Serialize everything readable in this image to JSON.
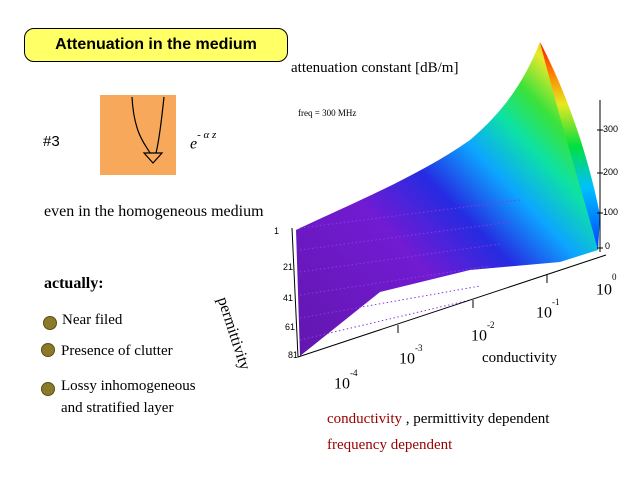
{
  "title": "Attenuation in the medium",
  "slide_number": "#3",
  "formula": {
    "base": "e",
    "exponent": "- α z"
  },
  "homogeneous_note": "even in the homogeneous medium",
  "actually_label": "actually:",
  "bullets": [
    {
      "text": "Near filed"
    },
    {
      "text": "Presence of clutter"
    },
    {
      "text": "Lossy inhomogeneous"
    },
    {
      "text": "and stratified layer"
    }
  ],
  "chart": {
    "zlabel": "attenuation constant [dB/m]",
    "freq_note": "freq = 300 MHz",
    "z_ticks": [
      "300",
      "200",
      "100",
      "0"
    ],
    "perm_label": "permittivity",
    "perm_ticks": [
      "1",
      "21",
      "41",
      "61",
      "81"
    ],
    "cond_label": "conductivity",
    "cond_tick_base": "10",
    "cond_ticks": [
      {
        "base": "10",
        "exp": "-4"
      },
      {
        "base": "10",
        "exp": "-3"
      },
      {
        "base": "10",
        "exp": "-2"
      },
      {
        "base": "10",
        "exp": "-1"
      },
      {
        "base": "10",
        "exp": "0"
      }
    ]
  },
  "footer": {
    "conductivity_word": "conductivity",
    "rest": " , permittivity dependent",
    "frequency": "frequency dependent"
  },
  "colors": {
    "title_bg": "#ffff66",
    "orange_box": "#f7a85a",
    "dark_red": "#990000",
    "bullet": "#8b7a2a"
  }
}
